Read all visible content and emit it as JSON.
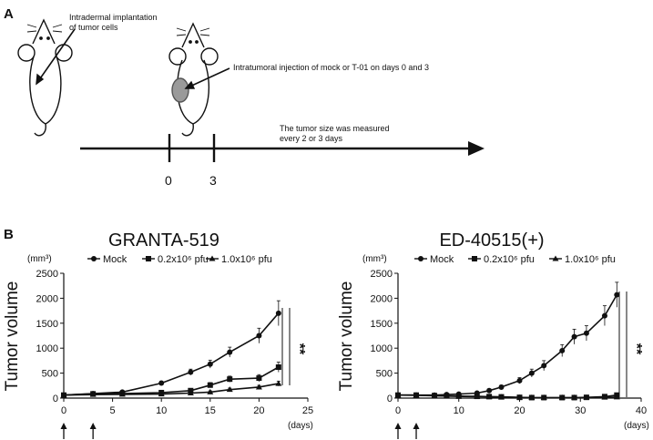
{
  "panel_a": {
    "label": "A",
    "note_implant": [
      "Intradermal implantation",
      "of tumor cells"
    ],
    "note_injection": "Intratumoral injection of mock or T-01 on days 0 and 3",
    "note_measure": [
      "The tumor size was measured",
      "every 2 or 3 days"
    ],
    "timeline_days": [
      "0",
      "3"
    ]
  },
  "panel_b": {
    "label": "B",
    "x_unit": "(days)",
    "y_unit": "(mm³)",
    "ylabel": "Tumor volume",
    "significance": "**"
  },
  "chart_data": [
    {
      "type": "line",
      "title": "GRANTA-519",
      "ylabel": "Tumor volume",
      "y_unit": "(mm³)",
      "x_unit": "(days)",
      "xlim": [
        0,
        25
      ],
      "ylim": [
        0,
        2500
      ],
      "xticks": [
        0,
        5,
        10,
        15,
        20,
        25
      ],
      "yticks": [
        0,
        500,
        1000,
        1500,
        2000,
        2500
      ],
      "legend": "top",
      "grid": false,
      "injection_days": [
        0,
        3
      ],
      "series": [
        {
          "name": "Mock",
          "marker": "circle",
          "x": [
            0,
            3,
            6,
            10,
            13,
            15,
            17,
            20,
            22
          ],
          "y": [
            60,
            90,
            120,
            300,
            520,
            680,
            920,
            1250,
            1700
          ],
          "err": [
            20,
            20,
            25,
            40,
            60,
            80,
            100,
            150,
            250
          ]
        },
        {
          "name": "0.2x10⁶ pfu",
          "marker": "square",
          "x": [
            0,
            3,
            6,
            10,
            13,
            15,
            17,
            20,
            22
          ],
          "y": [
            60,
            85,
            90,
            110,
            150,
            260,
            380,
            400,
            620
          ],
          "err": [
            15,
            15,
            15,
            20,
            30,
            50,
            60,
            70,
            100
          ]
        },
        {
          "name": "1.0x10⁶ pfu",
          "marker": "triangle",
          "x": [
            0,
            3,
            6,
            10,
            13,
            15,
            17,
            20,
            22
          ],
          "y": [
            60,
            70,
            75,
            80,
            100,
            120,
            170,
            220,
            290
          ],
          "err": [
            10,
            10,
            10,
            15,
            20,
            25,
            30,
            35,
            50
          ]
        }
      ],
      "significance": "**"
    },
    {
      "type": "line",
      "title": "ED-40515(+)",
      "ylabel": "Tumor volume",
      "y_unit": "(mm³)",
      "x_unit": "(days)",
      "xlim": [
        0,
        40
      ],
      "ylim": [
        0,
        2500
      ],
      "xticks": [
        0,
        10,
        20,
        30,
        40
      ],
      "yticks": [
        0,
        500,
        1000,
        1500,
        2000,
        2500
      ],
      "legend": "top",
      "grid": false,
      "injection_days": [
        0,
        3
      ],
      "series": [
        {
          "name": "Mock",
          "marker": "circle",
          "x": [
            0,
            3,
            6,
            8,
            10,
            13,
            15,
            17,
            20,
            22,
            24,
            27,
            29,
            31,
            34,
            36
          ],
          "y": [
            60,
            60,
            60,
            70,
            80,
            100,
            150,
            220,
            350,
            500,
            650,
            950,
            1230,
            1300,
            1650,
            2070
          ],
          "err": [
            15,
            15,
            15,
            15,
            20,
            25,
            30,
            40,
            60,
            80,
            100,
            120,
            150,
            150,
            200,
            250
          ]
        },
        {
          "name": "0.2x10⁶ pfu",
          "marker": "square",
          "x": [
            0,
            3,
            6,
            8,
            10,
            13,
            15,
            17,
            20,
            22,
            24,
            27,
            29,
            31,
            34,
            36
          ],
          "y": [
            60,
            60,
            50,
            45,
            40,
            35,
            30,
            25,
            15,
            10,
            10,
            10,
            10,
            15,
            30,
            60
          ],
          "err": [
            10,
            10,
            10,
            10,
            10,
            10,
            10,
            10,
            5,
            5,
            5,
            5,
            5,
            5,
            10,
            20
          ]
        },
        {
          "name": "1.0x10⁶ pfu",
          "marker": "triangle",
          "x": [
            0,
            3,
            6,
            8,
            10,
            13,
            15,
            17,
            20,
            22,
            24,
            27,
            29,
            31,
            34,
            36
          ],
          "y": [
            60,
            55,
            45,
            40,
            35,
            30,
            25,
            20,
            12,
            8,
            8,
            8,
            8,
            10,
            15,
            20
          ],
          "err": [
            10,
            10,
            10,
            10,
            10,
            10,
            10,
            10,
            5,
            5,
            5,
            5,
            5,
            5,
            5,
            5
          ]
        }
      ],
      "significance": "**"
    }
  ]
}
